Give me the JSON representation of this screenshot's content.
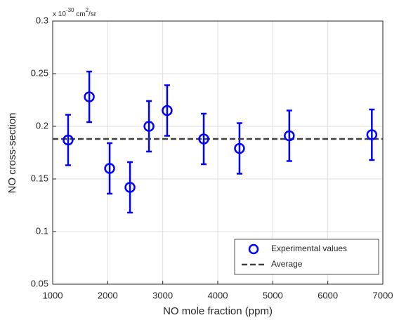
{
  "chart_data": {
    "type": "errorbar",
    "xlabel": "NO mole fraction (ppm)",
    "ylabel": "NO cross-section",
    "y_multiplier": {
      "base": "x 10",
      "exponent": "-30",
      "unit": " cm",
      "unit_exponent": "2",
      "unit_suffix": "/sr"
    },
    "x": [
      1280,
      1665,
      2035,
      2405,
      2750,
      3080,
      3745,
      4395,
      5300,
      6800
    ],
    "series": [
      {
        "name": "Experimental values",
        "color": "#0000ff",
        "values": [
          0.187,
          0.228,
          0.16,
          0.142,
          0.2,
          0.215,
          0.188,
          0.179,
          0.191,
          0.192
        ],
        "errors": [
          0.024,
          0.024,
          0.024,
          0.024,
          0.024,
          0.024,
          0.024,
          0.024,
          0.024,
          0.024
        ]
      },
      {
        "name": "Average",
        "color": "#404040",
        "value": 0.188,
        "linestyle": "dashed"
      }
    ],
    "xlim": [
      1000,
      7000
    ],
    "ylim": [
      0.05,
      0.3
    ],
    "xticks": [
      1000,
      2000,
      3000,
      4000,
      5000,
      6000,
      7000
    ],
    "yticks": [
      0.05,
      0.1,
      0.15,
      0.2,
      0.25,
      0.3
    ],
    "grid": true,
    "legend": "lower right"
  }
}
